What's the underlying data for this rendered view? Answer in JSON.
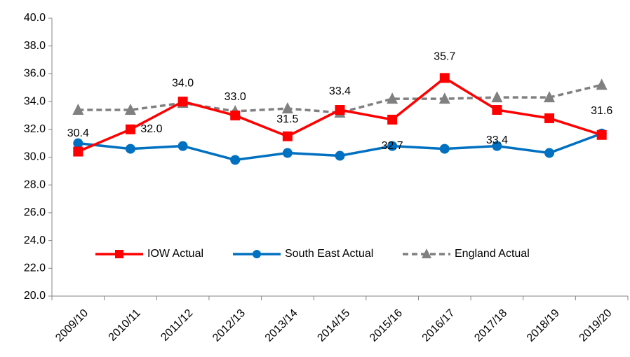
{
  "chart_data": {
    "type": "line",
    "categories": [
      "2009/10",
      "2010/11",
      "2011/12",
      "2012/13",
      "2013/14",
      "2014/15",
      "2015/16",
      "2016/17",
      "2017/18",
      "2018/19",
      "2019/20"
    ],
    "series": [
      {
        "name": "IOW Actual",
        "color": "#ff0000",
        "marker": "square",
        "dash": false,
        "values": [
          30.4,
          32.0,
          34.0,
          33.0,
          31.5,
          33.4,
          32.7,
          35.7,
          33.4,
          32.8,
          31.6
        ],
        "value_labels": [
          "30.4",
          "32.0",
          "34.0",
          "33.0",
          "31.5",
          "33.4",
          "32.7",
          "35.7",
          "33.4",
          null,
          "31.6"
        ]
      },
      {
        "name": "South East Actual",
        "color": "#0070c0",
        "marker": "circle",
        "dash": false,
        "values": [
          31.0,
          30.6,
          30.8,
          29.8,
          30.3,
          30.1,
          30.8,
          30.6,
          30.8,
          30.3,
          31.7
        ]
      },
      {
        "name": "England Actual",
        "color": "#808080",
        "marker": "triangle",
        "dash": true,
        "values": [
          33.4,
          33.4,
          33.9,
          33.3,
          33.5,
          33.2,
          34.2,
          34.2,
          34.3,
          34.3,
          35.2
        ]
      }
    ],
    "ylim": [
      20,
      40
    ],
    "yticks": [
      {
        "value": 20,
        "label": "20.0"
      },
      {
        "value": 22,
        "label": "22.0"
      },
      {
        "value": 24,
        "label": "24.0"
      },
      {
        "value": 26,
        "label": "26.0"
      },
      {
        "value": 28,
        "label": "28.0"
      },
      {
        "value": 30,
        "label": "30.0"
      },
      {
        "value": 32,
        "label": "32.0"
      },
      {
        "value": 34,
        "label": "34.0"
      },
      {
        "value": 36,
        "label": "36.0"
      },
      {
        "value": 38,
        "label": "38.0"
      },
      {
        "value": 40,
        "label": "40.0"
      }
    ],
    "grid": false,
    "legend": "bottom"
  }
}
